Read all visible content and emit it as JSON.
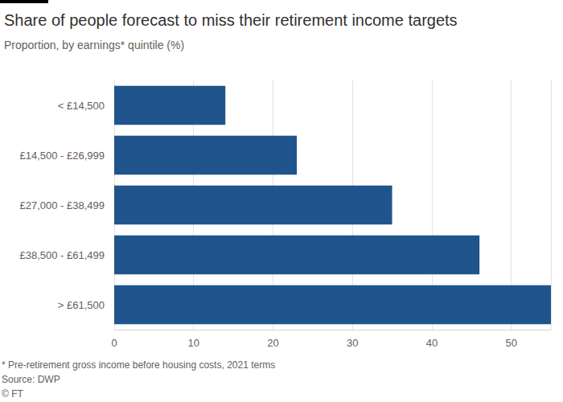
{
  "chart_data": {
    "type": "bar",
    "title": "Share of people forecast to miss their retirement income targets",
    "subtitle": "Proportion, by earnings* quintile (%)",
    "categories": [
      "< £14,500",
      "£14,500 - £26,999",
      "£27,000 - £38,499",
      "£38,500 - £61,499",
      "> £61,500"
    ],
    "values": [
      14,
      23,
      35,
      46,
      55
    ],
    "color": "#1f558c",
    "orientation": "horizontal",
    "xlim": [
      0,
      55
    ],
    "xticks": [
      0,
      10,
      20,
      30,
      40,
      50
    ],
    "grid": true,
    "annotations": [
      "* Pre-retirement gross income before housing costs, 2021 terms",
      "Source: DWP",
      "© FT"
    ]
  }
}
